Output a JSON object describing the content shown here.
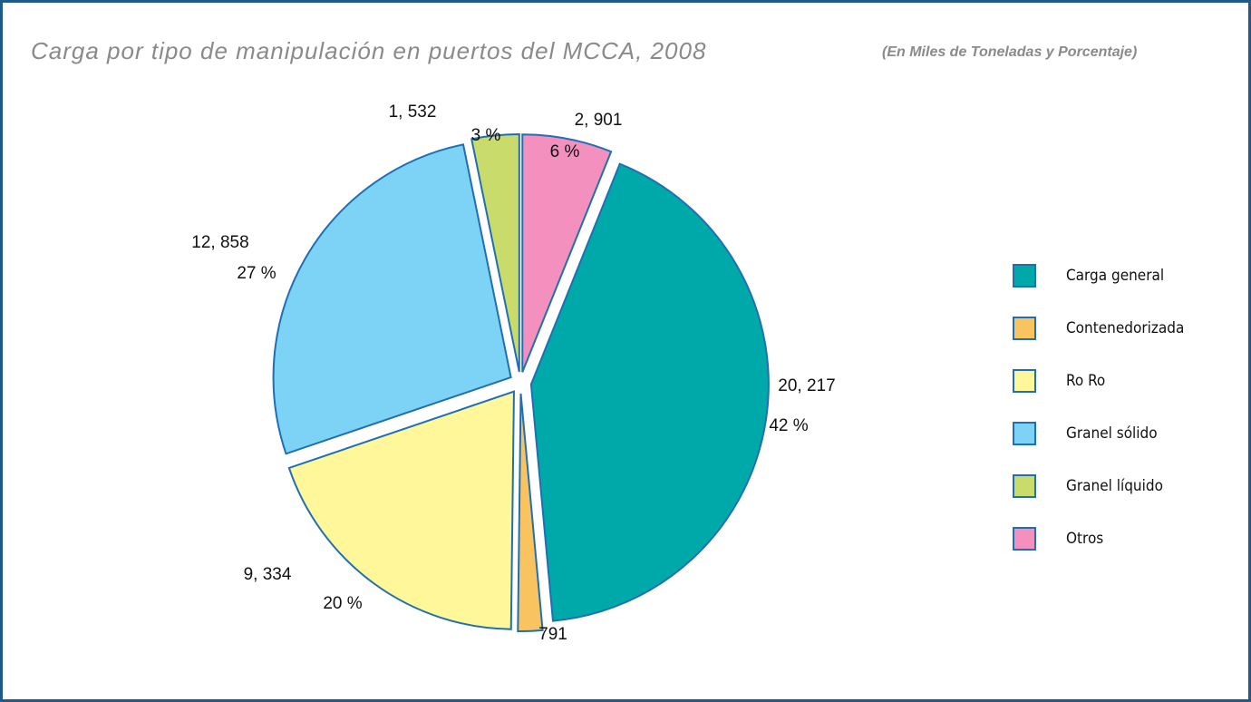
{
  "chart_data": {
    "type": "pie",
    "title": "Carga por tipo de manipulación en puertos del MCCA, 2008",
    "subtitle": "(En Miles de Toneladas y Porcentaje)",
    "categories": [
      "Carga general",
      "Contenedorizada",
      "Ro Ro",
      "Granel sólido",
      "Granel líquido",
      "Otros"
    ],
    "values": [
      20217,
      791,
      9334,
      12858,
      1532,
      2901
    ],
    "value_labels": [
      "20, 217",
      "791",
      "9, 334",
      "12, 858",
      "1, 532",
      "2, 901"
    ],
    "percent_labels": [
      "42 %",
      null,
      "20 %",
      "27 %",
      "3 %",
      "6 %"
    ],
    "colors": [
      "#00a9a9",
      "#f9c45f",
      "#fff799",
      "#7dd3f5",
      "#c9dc6b",
      "#f390be"
    ],
    "legend": "right"
  }
}
